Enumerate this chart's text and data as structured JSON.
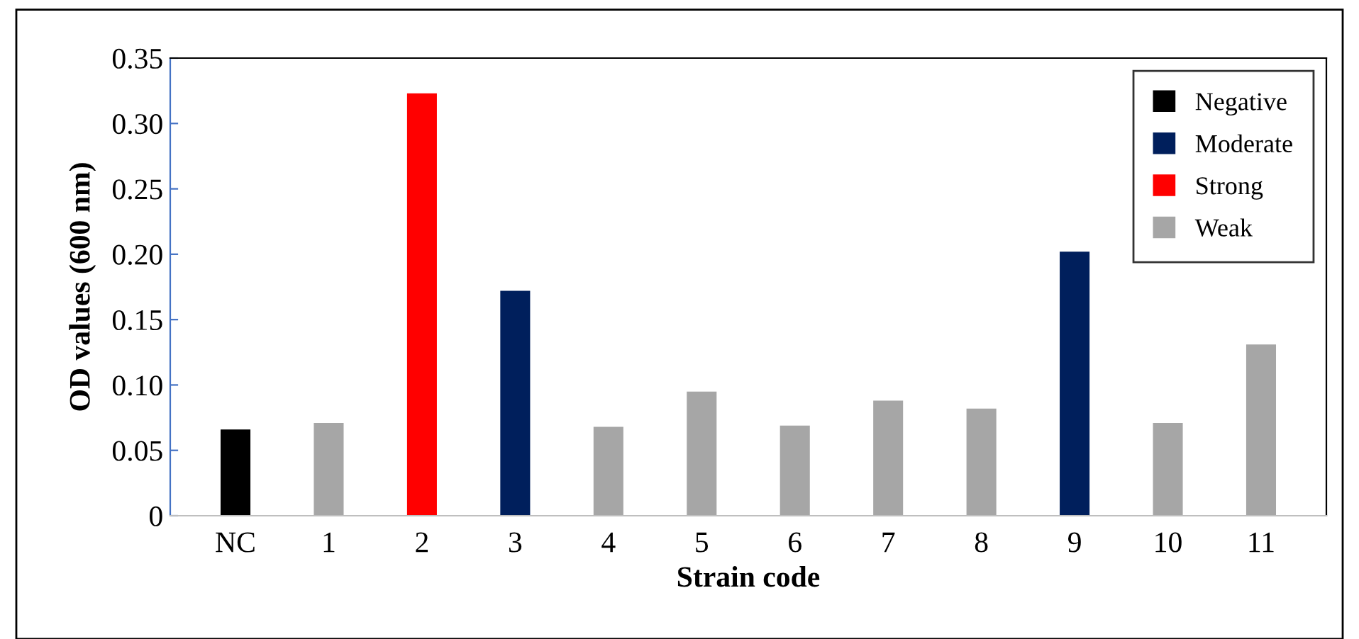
{
  "chart_data": {
    "type": "bar",
    "xlabel": "Strain code",
    "ylabel": "OD values (600 nm)",
    "categories": [
      "NC",
      "1",
      "2",
      "3",
      "4",
      "5",
      "6",
      "7",
      "8",
      "9",
      "10",
      "11"
    ],
    "series": [
      {
        "name": "Negative",
        "color": "#000000",
        "values": [
          0.066,
          null,
          null,
          null,
          null,
          null,
          null,
          null,
          null,
          null,
          null,
          null
        ]
      },
      {
        "name": "Moderate",
        "color": "#001f5c",
        "values": [
          null,
          null,
          null,
          0.172,
          null,
          null,
          null,
          null,
          null,
          0.202,
          null,
          null
        ]
      },
      {
        "name": "Strong",
        "color": "#ff0000",
        "values": [
          null,
          null,
          0.323,
          null,
          null,
          null,
          null,
          null,
          null,
          null,
          null,
          null
        ]
      },
      {
        "name": "Weak",
        "color": "#a6a6a6",
        "values": [
          null,
          0.071,
          null,
          null,
          0.068,
          0.095,
          0.069,
          0.088,
          0.082,
          null,
          0.071,
          0.131
        ]
      }
    ],
    "ylim": [
      0,
      0.35
    ],
    "yticks": [
      {
        "value": 0,
        "label": "0"
      },
      {
        "value": 0.05,
        "label": "0.05"
      },
      {
        "value": 0.1,
        "label": "0.10"
      },
      {
        "value": 0.15,
        "label": "0.15"
      },
      {
        "value": 0.2,
        "label": "0.20"
      },
      {
        "value": 0.25,
        "label": "0.25"
      },
      {
        "value": 0.3,
        "label": "0.30"
      },
      {
        "value": 0.35,
        "label": "0.35"
      }
    ],
    "grid": false,
    "legend": "top right"
  }
}
